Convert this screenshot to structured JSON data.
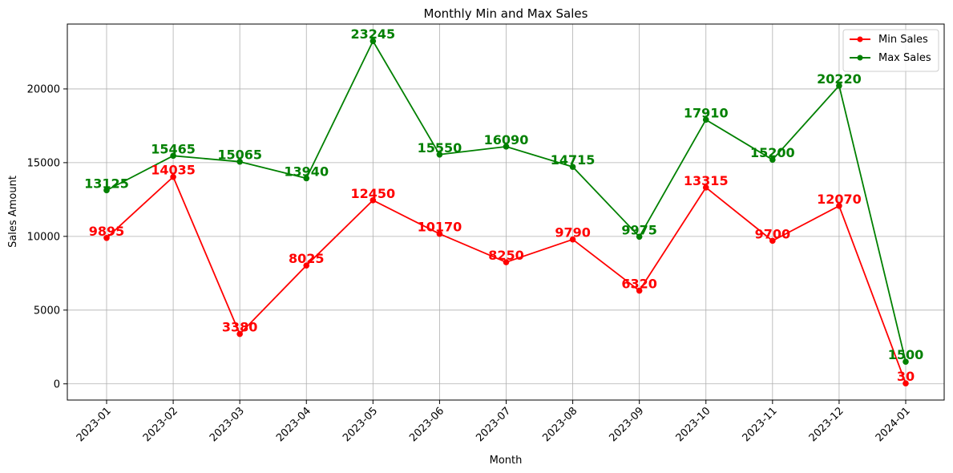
{
  "chart_data": {
    "type": "line",
    "title": "Monthly Min and Max Sales",
    "xlabel": "Month",
    "ylabel": "Sales Amount",
    "categories": [
      "2023-01",
      "2023-02",
      "2023-03",
      "2023-04",
      "2023-05",
      "2023-06",
      "2023-07",
      "2023-08",
      "2023-09",
      "2023-10",
      "2023-11",
      "2023-12",
      "2024-01"
    ],
    "yticks": [
      0,
      5000,
      10000,
      15000,
      20000
    ],
    "ylim": [
      -1100,
      24400
    ],
    "grid": true,
    "legend_position": "top-right",
    "series": [
      {
        "name": "Min Sales",
        "color": "#ff0000",
        "values": [
          9895,
          14035,
          3380,
          8025,
          12450,
          10170,
          8250,
          9790,
          6320,
          13315,
          9700,
          12070,
          30
        ]
      },
      {
        "name": "Max Sales",
        "color": "#008000",
        "values": [
          13125,
          15465,
          15065,
          13940,
          23245,
          15550,
          16090,
          14715,
          9975,
          17910,
          15200,
          20220,
          1500
        ]
      }
    ]
  }
}
